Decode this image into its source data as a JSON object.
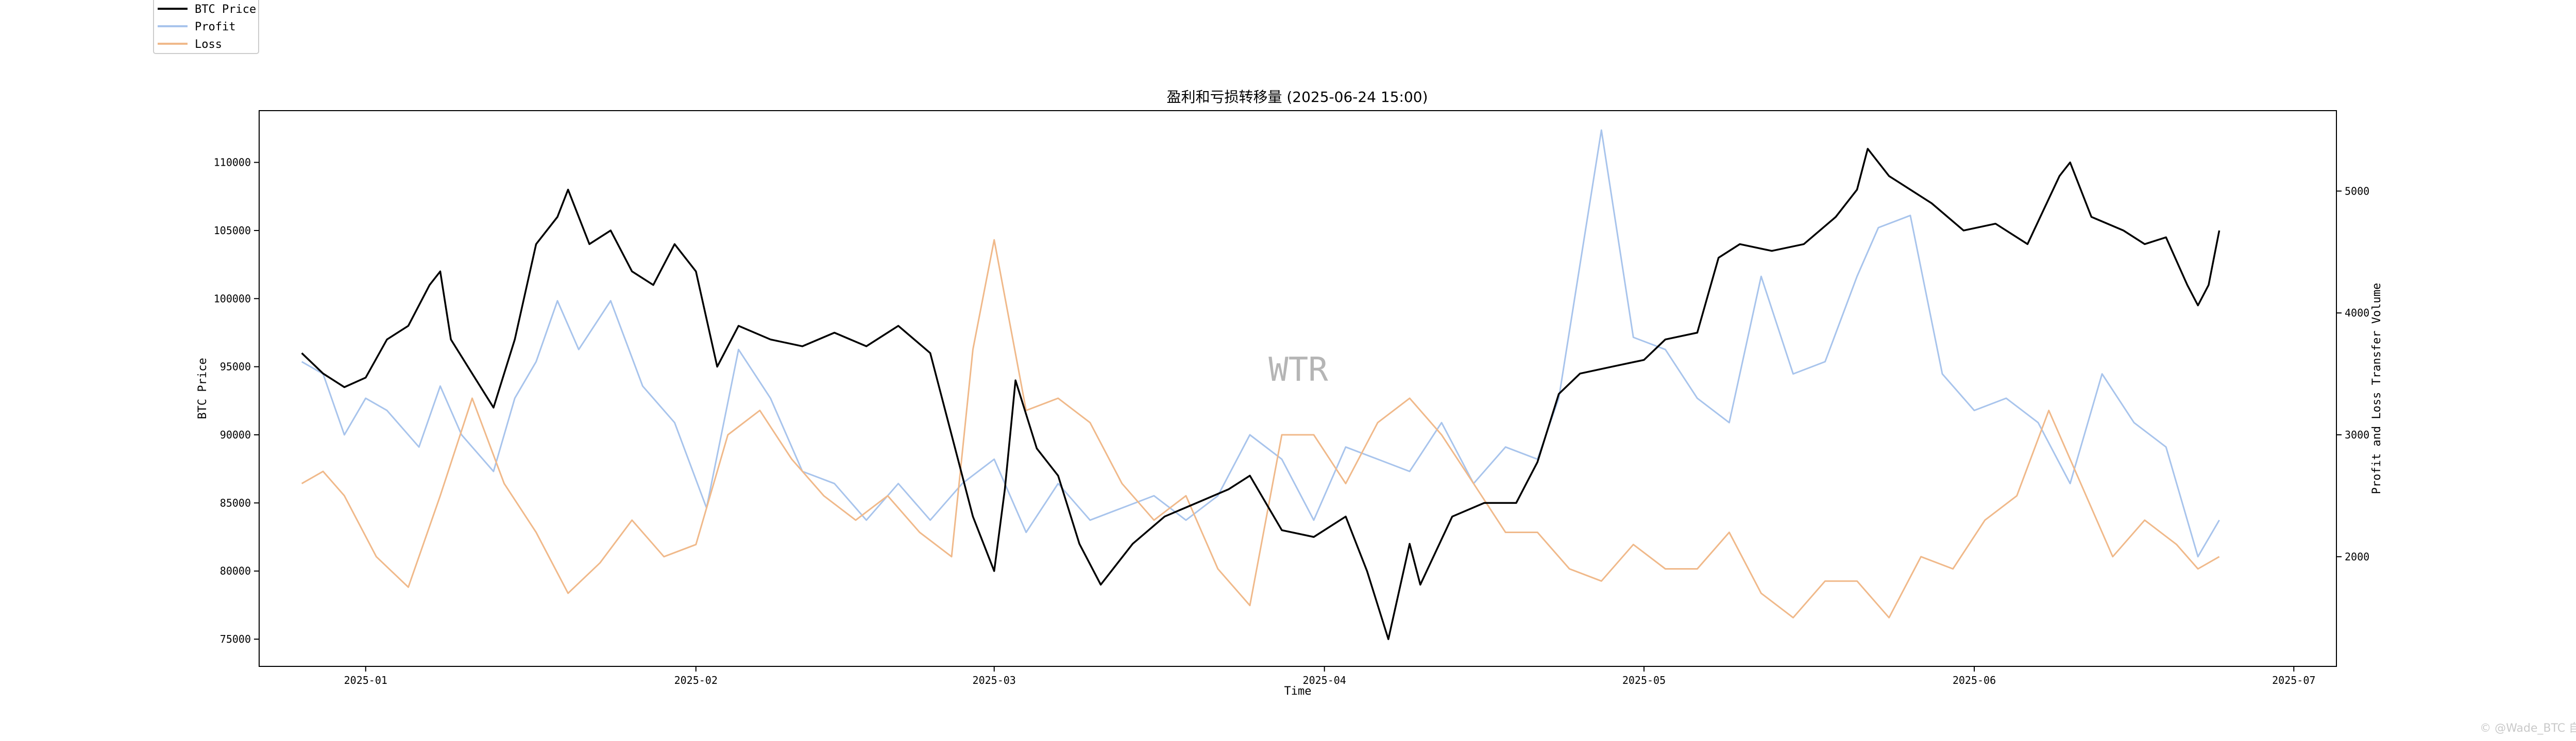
{
  "colors": {
    "btc": "#000000",
    "profit": "#a8c4ec",
    "loss": "#f0b98a",
    "watermark": "#b5b5b5",
    "axis": "#000000"
  },
  "chart_data": {
    "type": "line",
    "title": "盈利和亏损转移量 (2025-06-24 15:00)",
    "xlabel": "Time",
    "ylabel": "BTC Price",
    "y2label": "Profit and Loss Transfer Volume",
    "watermark": "WTR",
    "credit": "© @Wade_BTC 自研",
    "legend_position": "top-left",
    "grid": false,
    "xlim": [
      "2024-12-22",
      "2025-07-05"
    ],
    "ylim": [
      73000,
      113800
    ],
    "y2lim": [
      1100,
      5660
    ],
    "x_ticks": [
      "2025-01-01",
      "2025-02-01",
      "2025-03-01",
      "2025-04-01",
      "2025-05-01",
      "2025-06-01",
      "2025-07-01"
    ],
    "x_tick_labels": [
      "2025-01",
      "2025-02",
      "2025-03",
      "2025-04",
      "2025-05",
      "2025-06",
      "2025-07"
    ],
    "y_ticks": [
      75000,
      80000,
      85000,
      90000,
      95000,
      100000,
      105000,
      110000
    ],
    "y2_ticks": [
      2000,
      3000,
      4000,
      5000
    ],
    "series": [
      {
        "name": "BTC Price",
        "axis": "left",
        "color": "#000000",
        "x": [
          "2024-12-26",
          "2024-12-28",
          "2024-12-30",
          "2025-01-01",
          "2025-01-03",
          "2025-01-05",
          "2025-01-07",
          "2025-01-08",
          "2025-01-09",
          "2025-01-11",
          "2025-01-13",
          "2025-01-15",
          "2025-01-17",
          "2025-01-19",
          "2025-01-20",
          "2025-01-22",
          "2025-01-24",
          "2025-01-26",
          "2025-01-28",
          "2025-01-30",
          "2025-02-01",
          "2025-02-03",
          "2025-02-05",
          "2025-02-08",
          "2025-02-11",
          "2025-02-14",
          "2025-02-17",
          "2025-02-20",
          "2025-02-23",
          "2025-02-25",
          "2025-02-27",
          "2025-03-01",
          "2025-03-02",
          "2025-03-03",
          "2025-03-05",
          "2025-03-07",
          "2025-03-09",
          "2025-03-11",
          "2025-03-14",
          "2025-03-17",
          "2025-03-20",
          "2025-03-23",
          "2025-03-25",
          "2025-03-28",
          "2025-03-31",
          "2025-04-03",
          "2025-04-05",
          "2025-04-07",
          "2025-04-09",
          "2025-04-10",
          "2025-04-13",
          "2025-04-16",
          "2025-04-19",
          "2025-04-21",
          "2025-04-23",
          "2025-04-25",
          "2025-04-28",
          "2025-05-01",
          "2025-05-03",
          "2025-05-06",
          "2025-05-08",
          "2025-05-10",
          "2025-05-13",
          "2025-05-16",
          "2025-05-19",
          "2025-05-21",
          "2025-05-22",
          "2025-05-24",
          "2025-05-26",
          "2025-05-28",
          "2025-05-31",
          "2025-06-03",
          "2025-06-06",
          "2025-06-09",
          "2025-06-10",
          "2025-06-12",
          "2025-06-15",
          "2025-06-17",
          "2025-06-19",
          "2025-06-21",
          "2025-06-22",
          "2025-06-23",
          "2025-06-24"
        ],
        "values": [
          96000,
          94500,
          93500,
          94200,
          97000,
          98000,
          101000,
          102000,
          97000,
          94500,
          92000,
          97000,
          104000,
          106000,
          108000,
          104000,
          105000,
          102000,
          101000,
          104000,
          102000,
          95000,
          98000,
          97000,
          96500,
          97500,
          96500,
          98000,
          96000,
          90000,
          84000,
          80000,
          86000,
          94000,
          89000,
          87000,
          82000,
          79000,
          82000,
          84000,
          85000,
          86000,
          87000,
          83000,
          82500,
          84000,
          80000,
          75000,
          82000,
          79000,
          84000,
          85000,
          85000,
          88000,
          93000,
          94500,
          95000,
          95500,
          97000,
          97500,
          103000,
          104000,
          103500,
          104000,
          106000,
          108000,
          111000,
          109000,
          108000,
          107000,
          105000,
          105500,
          104000,
          109000,
          110000,
          106000,
          105000,
          104000,
          104500,
          101000,
          99500,
          101000,
          105000
        ]
      },
      {
        "name": "Profit",
        "axis": "right",
        "color": "#a8c4ec",
        "x": [
          "2024-12-26",
          "2024-12-28",
          "2024-12-30",
          "2025-01-01",
          "2025-01-03",
          "2025-01-06",
          "2025-01-08",
          "2025-01-10",
          "2025-01-13",
          "2025-01-15",
          "2025-01-17",
          "2025-01-19",
          "2025-01-21",
          "2025-01-24",
          "2025-01-27",
          "2025-01-30",
          "2025-02-02",
          "2025-02-05",
          "2025-02-08",
          "2025-02-11",
          "2025-02-14",
          "2025-02-17",
          "2025-02-20",
          "2025-02-23",
          "2025-02-26",
          "2025-03-01",
          "2025-03-04",
          "2025-03-07",
          "2025-03-10",
          "2025-03-13",
          "2025-03-16",
          "2025-03-19",
          "2025-03-22",
          "2025-03-25",
          "2025-03-28",
          "2025-03-31",
          "2025-04-03",
          "2025-04-06",
          "2025-04-09",
          "2025-04-12",
          "2025-04-15",
          "2025-04-18",
          "2025-04-21",
          "2025-04-23",
          "2025-04-25",
          "2025-04-27",
          "2025-04-30",
          "2025-05-03",
          "2025-05-06",
          "2025-05-09",
          "2025-05-12",
          "2025-05-15",
          "2025-05-18",
          "2025-05-21",
          "2025-05-23",
          "2025-05-26",
          "2025-05-29",
          "2025-06-01",
          "2025-06-04",
          "2025-06-07",
          "2025-06-10",
          "2025-06-13",
          "2025-06-16",
          "2025-06-19",
          "2025-06-22",
          "2025-06-24"
        ],
        "values": [
          3600,
          3500,
          3000,
          3300,
          3200,
          2900,
          3400,
          3000,
          2700,
          3300,
          3600,
          4100,
          3700,
          4100,
          3400,
          3100,
          2400,
          3700,
          3300,
          2700,
          2600,
          2300,
          2600,
          2300,
          2600,
          2800,
          2200,
          2600,
          2300,
          2400,
          2500,
          2300,
          2500,
          3000,
          2800,
          2300,
          2900,
          2800,
          2700,
          3100,
          2600,
          2900,
          2800,
          3300,
          4400,
          5500,
          3800,
          3700,
          3300,
          3100,
          4300,
          3500,
          3600,
          4300,
          4700,
          4800,
          3500,
          3200,
          3300,
          3100,
          2600,
          3500,
          3100,
          2900,
          2000,
          2300
        ]
      },
      {
        "name": "Loss",
        "axis": "right",
        "color": "#f0b98a",
        "x": [
          "2024-12-26",
          "2024-12-28",
          "2024-12-30",
          "2025-01-02",
          "2025-01-05",
          "2025-01-08",
          "2025-01-11",
          "2025-01-14",
          "2025-01-17",
          "2025-01-20",
          "2025-01-23",
          "2025-01-26",
          "2025-01-29",
          "2025-02-01",
          "2025-02-04",
          "2025-02-07",
          "2025-02-10",
          "2025-02-13",
          "2025-02-16",
          "2025-02-19",
          "2025-02-22",
          "2025-02-25",
          "2025-02-27",
          "2025-03-01",
          "2025-03-04",
          "2025-03-07",
          "2025-03-10",
          "2025-03-13",
          "2025-03-16",
          "2025-03-19",
          "2025-03-22",
          "2025-03-25",
          "2025-03-28",
          "2025-03-31",
          "2025-04-03",
          "2025-04-06",
          "2025-04-09",
          "2025-04-12",
          "2025-04-15",
          "2025-04-18",
          "2025-04-21",
          "2025-04-24",
          "2025-04-27",
          "2025-04-30",
          "2025-05-03",
          "2025-05-06",
          "2025-05-09",
          "2025-05-12",
          "2025-05-15",
          "2025-05-18",
          "2025-05-21",
          "2025-05-24",
          "2025-05-27",
          "2025-05-30",
          "2025-06-02",
          "2025-06-05",
          "2025-06-08",
          "2025-06-11",
          "2025-06-14",
          "2025-06-17",
          "2025-06-20",
          "2025-06-22",
          "2025-06-24"
        ],
        "values": [
          2600,
          2700,
          2500,
          2000,
          1750,
          2500,
          3300,
          2600,
          2200,
          1700,
          1950,
          2300,
          2000,
          2100,
          3000,
          3200,
          2800,
          2500,
          2300,
          2500,
          2200,
          2000,
          3700,
          4600,
          3200,
          3300,
          3100,
          2600,
          2300,
          2500,
          1900,
          1600,
          3000,
          3000,
          2600,
          3100,
          3300,
          3000,
          2600,
          2200,
          2200,
          1900,
          1800,
          2100,
          1900,
          1900,
          2200,
          1700,
          1500,
          1800,
          1800,
          1500,
          2000,
          1900,
          2300,
          2500,
          3200,
          2600,
          2000,
          2300,
          2100,
          1900,
          2000
        ]
      }
    ]
  }
}
